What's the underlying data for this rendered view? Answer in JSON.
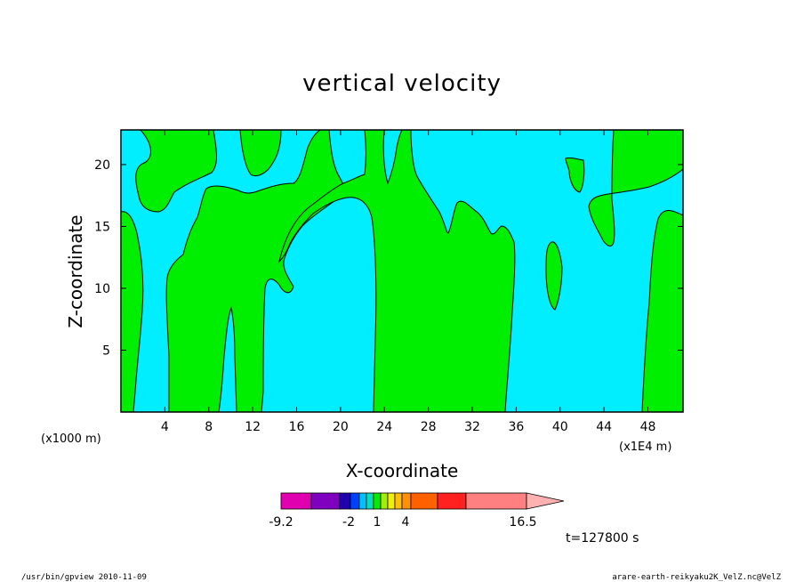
{
  "chart_data": {
    "type": "heatmap",
    "title": "vertical velocity",
    "xlabel": "X-coordinate",
    "ylabel": "Z-coordinate",
    "x_unit_left": "(x1000 m)",
    "x_unit_right": "(x1E4 m)",
    "xlim": [
      0,
      51.2
    ],
    "ylim": [
      0,
      22.8
    ],
    "x_ticks": [
      4,
      8,
      12,
      16,
      20,
      24,
      28,
      32,
      36,
      40,
      44,
      48
    ],
    "x_tick_labels": [
      "4",
      "8",
      "12",
      "16",
      "20",
      "24",
      "28",
      "32",
      "36",
      "40",
      "44",
      "48"
    ],
    "y_ticks": [
      5,
      10,
      15,
      20
    ],
    "y_tick_labels": [
      "5",
      "10",
      "15",
      "20"
    ],
    "regions": {
      "negative_color": "#00eeff",
      "positive_color": "#00ee00",
      "contour_color": "#000000"
    },
    "colorbar": {
      "colors": [
        "#e000b0",
        "#8000c0",
        "#2000b0",
        "#0040ff",
        "#00c0ff",
        "#00e0c0",
        "#00ee00",
        "#a0f000",
        "#f0f000",
        "#ffc000",
        "#ff9000",
        "#ff6000",
        "#ff2020",
        "#ff8080",
        "#ffb0b0"
      ],
      "labels": [
        "-9.2",
        "-2",
        "1",
        "4",
        "16.5"
      ]
    },
    "time": "t=127800 s"
  },
  "footer": {
    "left": "/usr/bin/gpview   2010-11-09",
    "right": "arare-earth-reikyaku2K_VelZ.nc@VelZ"
  }
}
